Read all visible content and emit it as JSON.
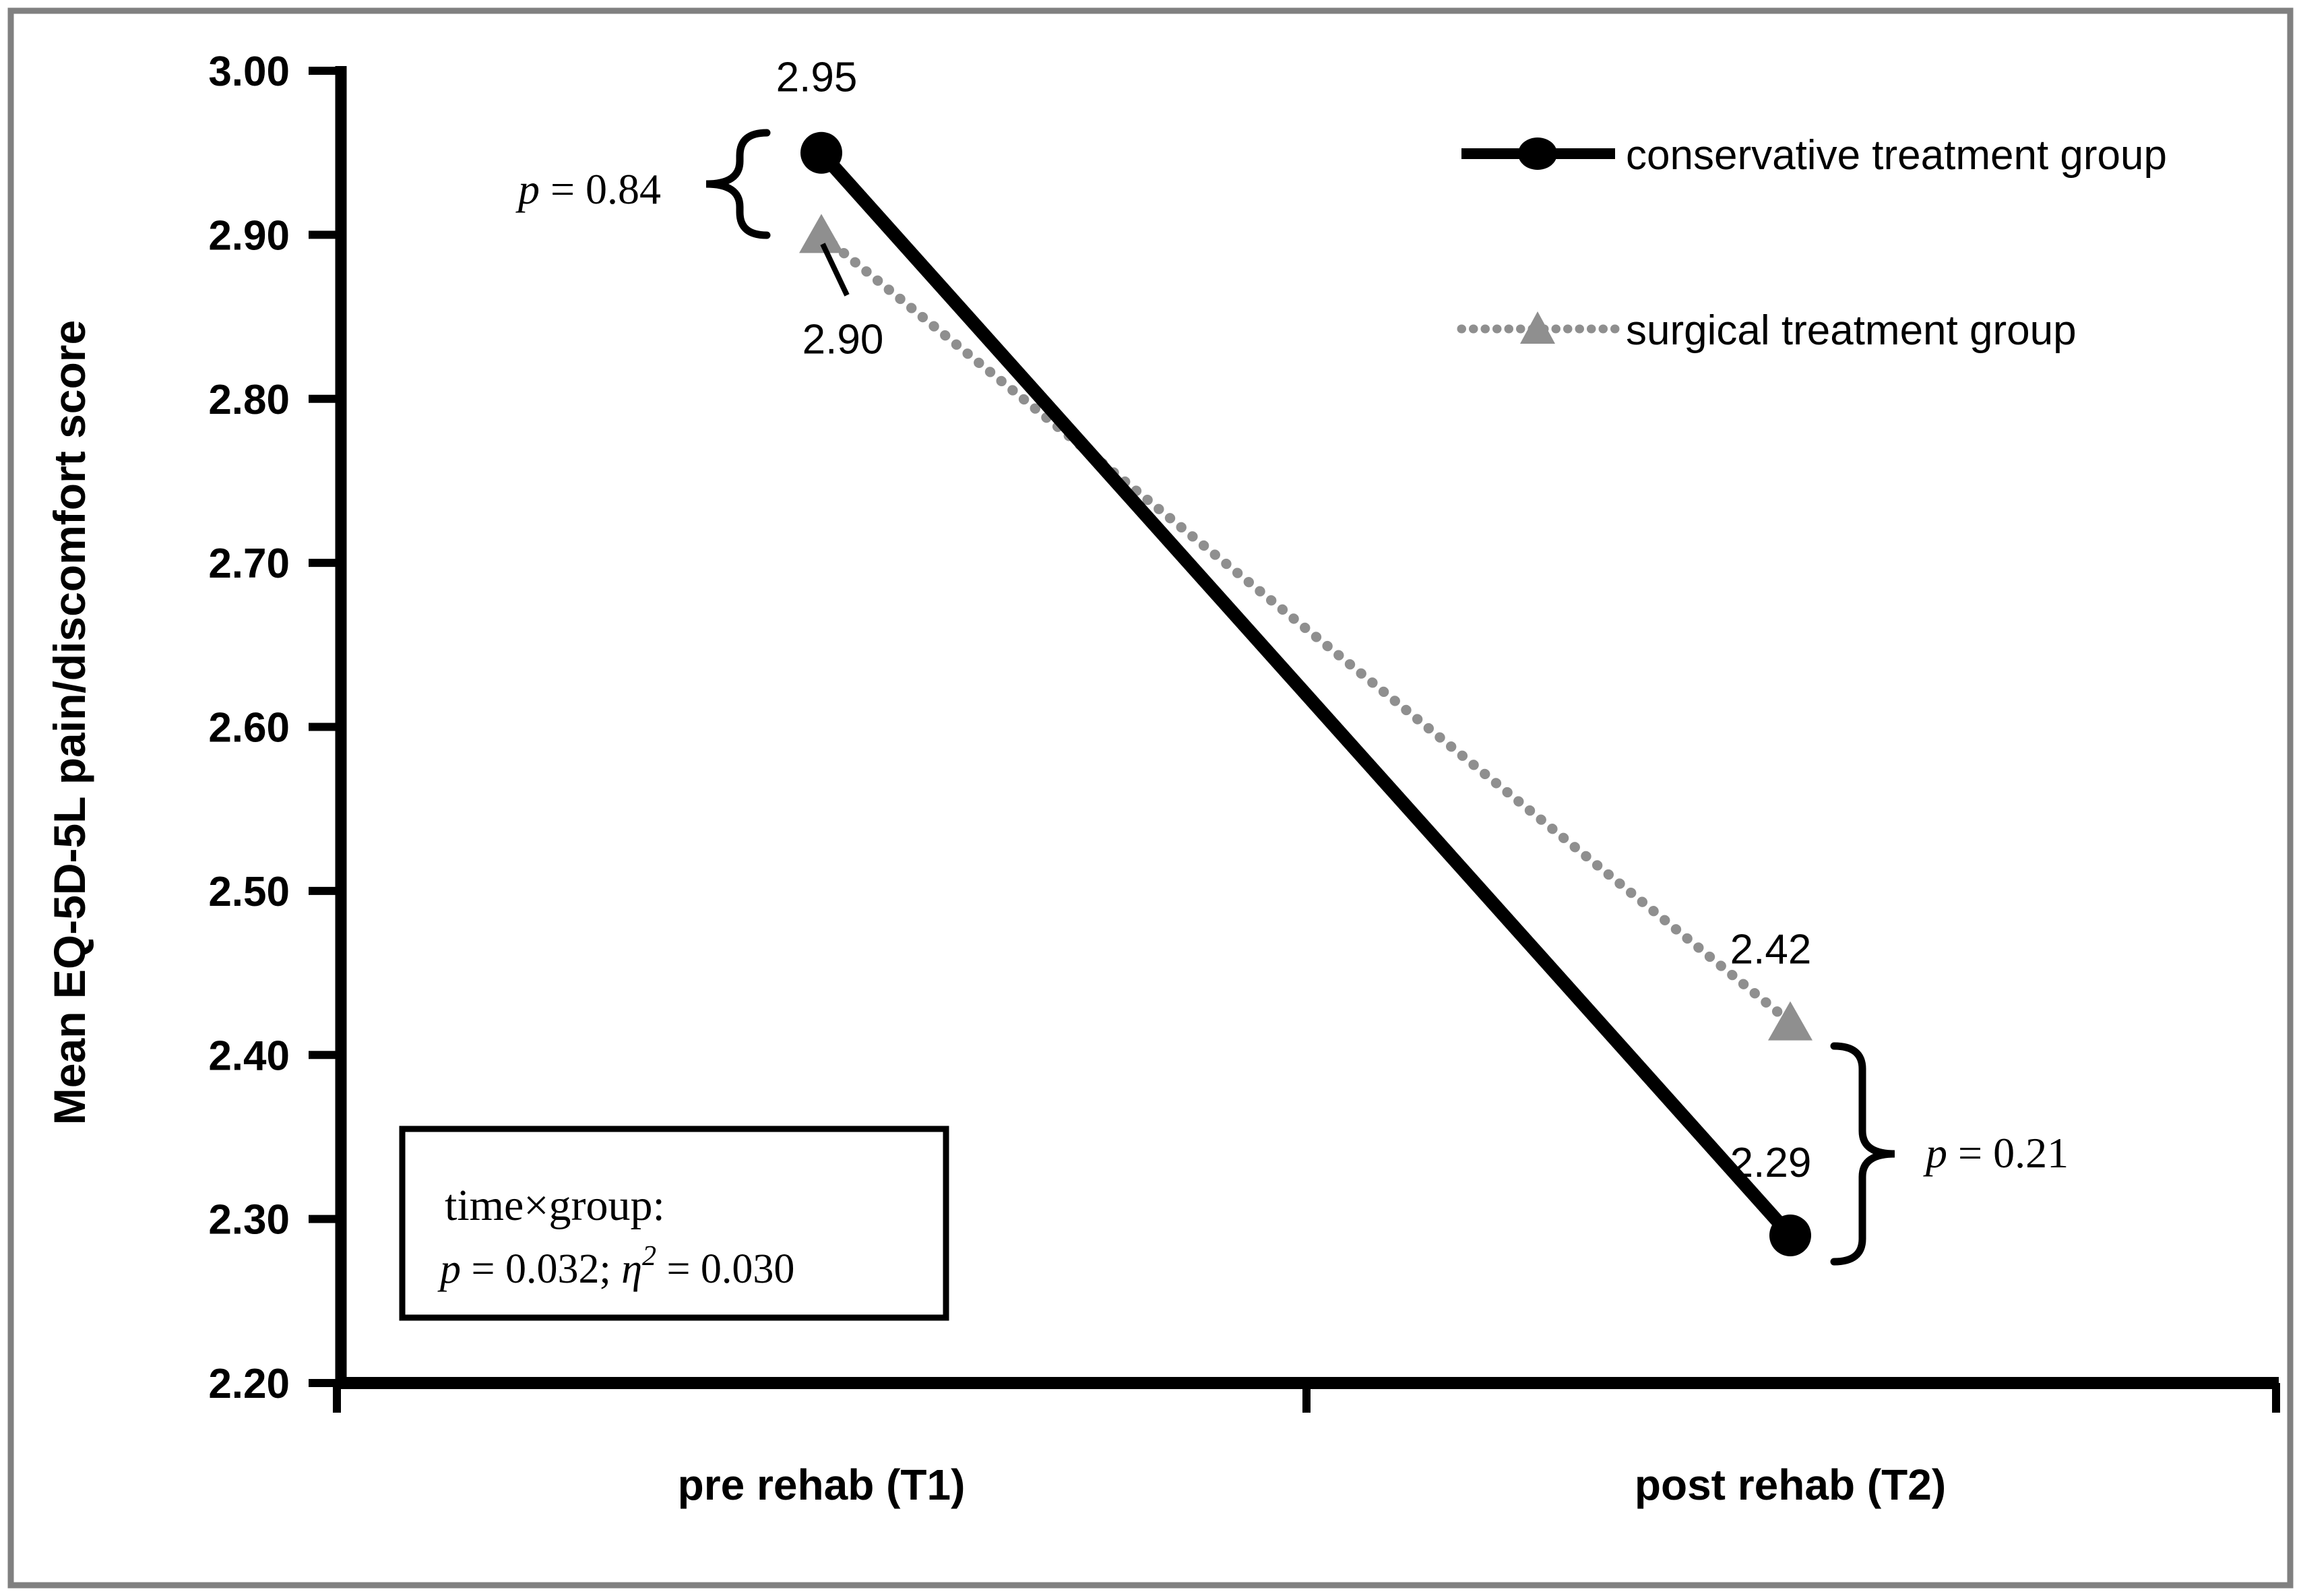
{
  "figure": {
    "background": "#ffffff",
    "border_color": "#808080",
    "axis_color": "#000000"
  },
  "chart_data": {
    "type": "line",
    "title": "",
    "xlabel": "",
    "ylabel": "Mean EQ-5D-5L pain/discomfort score",
    "categories": [
      "pre rehab (T1)",
      "post rehab (T2)"
    ],
    "series": [
      {
        "name": "conservative treatment group",
        "values": [
          2.95,
          2.29
        ],
        "data_labels": [
          "2.95",
          "2.29"
        ],
        "color": "#000000",
        "marker": "circle",
        "line_style": "solid"
      },
      {
        "name": "surgical treatment group",
        "values": [
          2.9,
          2.42
        ],
        "data_labels": [
          "2.90",
          "2.42"
        ],
        "color": "#8f8f8f",
        "marker": "triangle-up",
        "line_style": "dotted"
      }
    ],
    "ylim": [
      2.2,
      3.0
    ],
    "ytick_step": 0.1,
    "ytick_labels": [
      "2.20",
      "2.30",
      "2.40",
      "2.50",
      "2.60",
      "2.70",
      "2.80",
      "2.90",
      "3.00"
    ],
    "grid": false,
    "legend_position": "top-right"
  },
  "annotations": {
    "t1_comparison": {
      "text": "p = 0.84",
      "parts": [
        {
          "t": "p",
          "i": 1
        },
        {
          "t": " = 0.84"
        }
      ]
    },
    "t2_comparison": {
      "text": "p = 0.21",
      "parts": [
        {
          "t": "p",
          "i": 1
        },
        {
          "t": " = 0.21"
        }
      ]
    },
    "interaction_box": {
      "line1": "time×group:",
      "line2_text": "p = 0.032; η² = 0.030",
      "line2_parts": [
        {
          "t": "p",
          "i": 1
        },
        {
          "t": " = 0.032; "
        },
        {
          "t": "η",
          "i": 1
        },
        {
          "t": "2",
          "i": 1,
          "sup": 1
        },
        {
          "t": " = 0.030"
        }
      ]
    }
  }
}
